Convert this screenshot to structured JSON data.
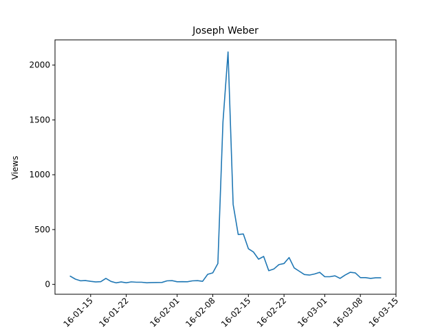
{
  "chart_data": {
    "type": "line",
    "title": "Joseph Weber",
    "xlabel": "",
    "ylabel": "Views",
    "xlim": [
      "2016-01-08",
      "2016-03-15"
    ],
    "ylim": [
      -90,
      2230
    ],
    "grid": false,
    "x_ticks": [
      "2016-01-15",
      "2016-01-22",
      "2016-02-01",
      "2016-02-08",
      "2016-02-15",
      "2016-02-22",
      "2016-03-01",
      "2016-03-08",
      "2016-03-15"
    ],
    "x_tick_labels": [
      "16-01-15",
      "16-01-22",
      "16-02-01",
      "16-02-08",
      "16-02-15",
      "16-02-22",
      "16-03-01",
      "16-03-08",
      "16-03-15"
    ],
    "y_ticks": [
      0,
      500,
      1000,
      1500,
      2000
    ],
    "y_tick_labels": [
      "0",
      "500",
      "1000",
      "1500",
      "2000"
    ],
    "series": [
      {
        "color": "#1f77b4",
        "x": [
          "2016-01-11",
          "2016-01-12",
          "2016-01-13",
          "2016-01-14",
          "2016-01-15",
          "2016-01-16",
          "2016-01-17",
          "2016-01-18",
          "2016-01-19",
          "2016-01-20",
          "2016-01-21",
          "2016-01-22",
          "2016-01-23",
          "2016-01-24",
          "2016-01-25",
          "2016-01-26",
          "2016-01-27",
          "2016-01-28",
          "2016-01-29",
          "2016-01-30",
          "2016-01-31",
          "2016-02-01",
          "2016-02-02",
          "2016-02-03",
          "2016-02-04",
          "2016-02-05",
          "2016-02-06",
          "2016-02-07",
          "2016-02-08",
          "2016-02-09",
          "2016-02-10",
          "2016-02-11",
          "2016-02-12",
          "2016-02-13",
          "2016-02-14",
          "2016-02-15",
          "2016-02-16",
          "2016-02-17",
          "2016-02-18",
          "2016-02-19",
          "2016-02-20",
          "2016-02-21",
          "2016-02-22",
          "2016-02-23",
          "2016-02-24",
          "2016-02-25",
          "2016-02-26",
          "2016-02-27",
          "2016-02-28",
          "2016-02-29",
          "2016-03-01",
          "2016-03-02",
          "2016-03-03",
          "2016-03-04",
          "2016-03-05",
          "2016-03-06",
          "2016-03-07",
          "2016-03-08",
          "2016-03-09",
          "2016-03-10",
          "2016-03-11",
          "2016-03-12"
        ],
        "values": [
          75,
          48,
          33,
          35,
          28,
          22,
          25,
          55,
          27,
          14,
          22,
          15,
          23,
          20,
          20,
          15,
          16,
          17,
          18,
          32,
          34,
          24,
          25,
          24,
          32,
          34,
          28,
          92,
          105,
          190,
          1480,
          2120,
          730,
          455,
          460,
          325,
          295,
          230,
          255,
          125,
          140,
          180,
          190,
          245,
          150,
          120,
          90,
          85,
          95,
          110,
          70,
          70,
          78,
          55,
          85,
          110,
          105,
          62,
          62,
          55,
          60,
          60
        ]
      }
    ]
  }
}
